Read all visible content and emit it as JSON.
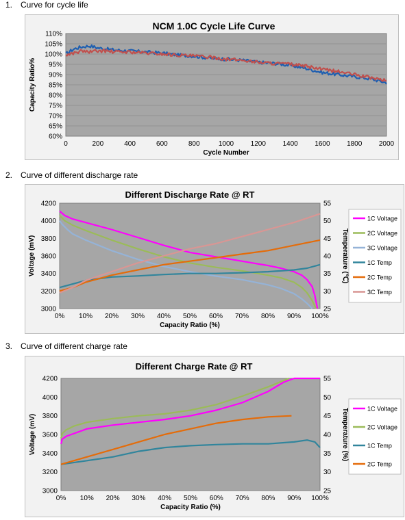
{
  "sections": [
    {
      "number": "1.",
      "heading": "Curve for cycle life"
    },
    {
      "number": "2.",
      "heading": "Curve of different discharge rate"
    },
    {
      "number": "3.",
      "heading": "Curve of different charge rate"
    }
  ],
  "chart_data": [
    {
      "type": "line",
      "title": "NCM 1.0C Cycle Life Curve",
      "xlabel": "Cycle Number",
      "ylabel": "Capacity Ratio%",
      "xlim": [
        0,
        2000
      ],
      "ylim": [
        60,
        110
      ],
      "x_ticks": [
        "0",
        "200",
        "400",
        "600",
        "800",
        "1000",
        "1200",
        "1400",
        "1600",
        "1800",
        "2000"
      ],
      "y_ticks": [
        "110%",
        "105%",
        "100%",
        "95%",
        "90%",
        "85%",
        "80%",
        "75%",
        "70%",
        "65%",
        "60%"
      ],
      "grid": true,
      "legend": "none",
      "series": [
        {
          "color": "#1f5fb0",
          "x": [
            0,
            50,
            100,
            150,
            200,
            250,
            300,
            400,
            500,
            600,
            700,
            800,
            900,
            1000,
            1100,
            1200,
            1300,
            1400,
            1500,
            1600,
            1700,
            1800,
            1900,
            2000
          ],
          "y": [
            100,
            102.5,
            103.5,
            104,
            103,
            102.5,
            102,
            101.5,
            101,
            100.5,
            99.5,
            99,
            98,
            97.5,
            97,
            96,
            95.5,
            94.5,
            93,
            91,
            90,
            89,
            88,
            86
          ]
        },
        {
          "color": "#c0504d",
          "x": [
            0,
            50,
            100,
            150,
            200,
            250,
            300,
            400,
            500,
            600,
            700,
            800,
            900,
            1000,
            1100,
            1200,
            1300,
            1400,
            1500,
            1600,
            1700,
            1800,
            1900,
            2000
          ],
          "y": [
            99.5,
            100.5,
            101.5,
            101,
            101.5,
            101.5,
            101,
            101,
            100.5,
            100,
            99.5,
            99,
            98.5,
            97.5,
            97,
            96,
            95.5,
            95,
            94,
            92.5,
            91.5,
            90,
            88.5,
            87
          ]
        }
      ]
    },
    {
      "type": "line",
      "title": "Different Discharge Rate @ RT",
      "xlabel": "Capacity Ratio (%)",
      "ylabel": "Voltage (mV)",
      "y2label": "Temperature (℃)",
      "xlim": [
        0,
        100
      ],
      "ylim": [
        3000,
        4200
      ],
      "y2lim": [
        25,
        55
      ],
      "x_ticks": [
        "0%",
        "10%",
        "20%",
        "30%",
        "40%",
        "50%",
        "60%",
        "70%",
        "80%",
        "90%",
        "100%"
      ],
      "y_ticks": [
        "4200",
        "4000",
        "3800",
        "3600",
        "3400",
        "3200",
        "3000"
      ],
      "y2_ticks": [
        "55",
        "50",
        "45",
        "40",
        "35",
        "30",
        "25"
      ],
      "grid": false,
      "legend": "right",
      "series": [
        {
          "name": "1C Voltage",
          "axis": "left",
          "color": "#ff00ff",
          "x": [
            0,
            2,
            5,
            10,
            20,
            30,
            40,
            50,
            60,
            70,
            80,
            85,
            90,
            93,
            95,
            97,
            98,
            99
          ],
          "y": [
            4110,
            4060,
            4020,
            3980,
            3900,
            3810,
            3720,
            3640,
            3590,
            3540,
            3490,
            3460,
            3420,
            3380,
            3330,
            3250,
            3150,
            3000
          ]
        },
        {
          "name": "2C Voltage",
          "axis": "left",
          "color": "#9bbb59",
          "x": [
            0,
            2,
            5,
            10,
            20,
            30,
            40,
            50,
            60,
            70,
            80,
            85,
            90,
            93,
            95,
            97,
            98.5
          ],
          "y": [
            4060,
            4000,
            3950,
            3890,
            3780,
            3680,
            3590,
            3520,
            3470,
            3430,
            3380,
            3350,
            3300,
            3240,
            3180,
            3090,
            3000
          ]
        },
        {
          "name": "3C Voltage",
          "axis": "left",
          "color": "#95b3d7",
          "x": [
            0,
            1,
            3,
            5,
            10,
            20,
            30,
            40,
            50,
            60,
            70,
            80,
            85,
            90,
            93,
            95,
            97
          ],
          "y": [
            4000,
            3960,
            3900,
            3850,
            3780,
            3660,
            3560,
            3480,
            3420,
            3370,
            3330,
            3270,
            3230,
            3170,
            3110,
            3060,
            3000
          ]
        },
        {
          "name": "1C Temp",
          "axis": "right",
          "color": "#31859c",
          "x": [
            0,
            5,
            10,
            20,
            30,
            40,
            50,
            60,
            70,
            80,
            90,
            95,
            100
          ],
          "y": [
            31,
            32,
            33,
            34,
            34.3,
            34.7,
            35,
            35,
            35.2,
            35.5,
            36,
            36.5,
            37.5
          ]
        },
        {
          "name": "2C Temp",
          "axis": "right",
          "color": "#e46c0a",
          "x": [
            0,
            5,
            10,
            20,
            30,
            40,
            50,
            60,
            70,
            80,
            90,
            100
          ],
          "y": [
            30,
            31,
            32.5,
            34.5,
            36,
            37.5,
            38.5,
            39.5,
            40.5,
            41.5,
            43,
            44.5
          ]
        },
        {
          "name": "3C Temp",
          "axis": "right",
          "color": "#d99694",
          "x": [
            0,
            5,
            10,
            20,
            30,
            40,
            50,
            60,
            70,
            80,
            90,
            100
          ],
          "y": [
            29.5,
            31,
            33,
            35.5,
            38,
            40,
            42,
            43.5,
            45.5,
            47.5,
            49.5,
            52
          ]
        }
      ]
    },
    {
      "type": "line",
      "title": "Different Charge Rate @ RT",
      "xlabel": "Capacity Ratio (%)",
      "ylabel": "Voltage (mV)",
      "y2label": "Temperature (%)",
      "xlim": [
        0,
        100
      ],
      "ylim": [
        3000,
        4200
      ],
      "y2lim": [
        25,
        55
      ],
      "x_ticks": [
        "0%",
        "10%",
        "20%",
        "30%",
        "40%",
        "50%",
        "60%",
        "70%",
        "80%",
        "90%",
        "100%"
      ],
      "y_ticks": [
        "4200",
        "4000",
        "3800",
        "3600",
        "3400",
        "3200",
        "3000"
      ],
      "y2_ticks": [
        "55",
        "50",
        "45",
        "40",
        "35",
        "30",
        "25"
      ],
      "grid": false,
      "legend": "right",
      "series": [
        {
          "name": "1C Voltage",
          "axis": "left",
          "color": "#ff00ff",
          "x": [
            0,
            0.5,
            2,
            5,
            10,
            20,
            30,
            40,
            50,
            60,
            70,
            80,
            86,
            90,
            93,
            100
          ],
          "y": [
            3500,
            3550,
            3580,
            3610,
            3660,
            3700,
            3730,
            3760,
            3800,
            3860,
            3940,
            4060,
            4160,
            4200,
            4200,
            4200
          ]
        },
        {
          "name": "2C Voltage",
          "axis": "left",
          "color": "#9bbb59",
          "x": [
            0,
            0.5,
            2,
            5,
            10,
            20,
            30,
            40,
            50,
            60,
            70,
            80,
            88
          ],
          "y": [
            3560,
            3610,
            3650,
            3690,
            3730,
            3770,
            3800,
            3820,
            3860,
            3920,
            4010,
            4110,
            4200
          ]
        },
        {
          "name": "1C Temp",
          "axis": "right",
          "color": "#31859c",
          "x": [
            0,
            10,
            20,
            30,
            40,
            50,
            60,
            70,
            80,
            90,
            95,
            98,
            100
          ],
          "y": [
            32,
            33,
            34,
            35.5,
            36.5,
            37,
            37.3,
            37.5,
            37.5,
            38,
            38.5,
            38,
            36.5
          ]
        },
        {
          "name": "2C Temp",
          "axis": "right",
          "color": "#e46c0a",
          "x": [
            0,
            10,
            20,
            30,
            40,
            50,
            60,
            70,
            80,
            89
          ],
          "y": [
            32,
            34,
            36,
            38,
            40,
            41.5,
            43,
            44,
            44.7,
            45
          ]
        }
      ]
    }
  ]
}
